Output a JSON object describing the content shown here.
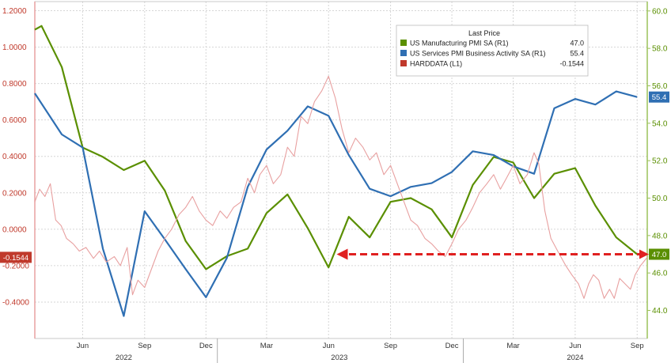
{
  "chart_data": {
    "type": "line",
    "legend": {
      "header": "Last Price",
      "placement": "top-right",
      "entries": [
        {
          "label": "US Manufacturing PMI SA  (R1)",
          "value": "47.0",
          "color": "#5a8f00"
        },
        {
          "label": "US Services PMI Business Activity SA  (R1)",
          "value": "55.4",
          "color": "#2f6fb3"
        },
        {
          "label": "HARDDATA  (L1)",
          "value": "-0.1544",
          "color": "#c0392b"
        }
      ]
    },
    "left_axis": {
      "ylim": [
        -0.6,
        1.25
      ],
      "ticks": [
        1.2,
        1.0,
        0.8,
        0.6,
        0.4,
        0.2,
        0.0,
        -0.2,
        -0.4
      ],
      "tick_labels": [
        "1.2000",
        "1.0000",
        "0.8000",
        "0.6000",
        "0.4000",
        "0.2000",
        "0.0000",
        "-0.2000",
        "-0.4000"
      ]
    },
    "right_axis": {
      "ylim": [
        42.5,
        60.5
      ],
      "ticks": [
        60,
        58,
        56,
        54,
        52,
        50,
        48,
        46,
        44
      ],
      "tick_labels": [
        "60.0",
        "58.0",
        "56.0",
        "54.0",
        "52.0",
        "50.0",
        "48.0",
        "46.0",
        "44.0"
      ]
    },
    "x_axis": {
      "xlim": [
        "2022-04-05",
        "2024-09-30"
      ],
      "month_ticks": [
        {
          "date": "2022-06-15",
          "label": "Jun"
        },
        {
          "date": "2022-09-15",
          "label": "Sep"
        },
        {
          "date": "2022-12-15",
          "label": "Dec"
        },
        {
          "date": "2023-03-15",
          "label": "Mar"
        },
        {
          "date": "2023-06-15",
          "label": "Jun"
        },
        {
          "date": "2023-09-15",
          "label": "Sep"
        },
        {
          "date": "2023-12-15",
          "label": "Dec"
        },
        {
          "date": "2024-03-15",
          "label": "Mar"
        },
        {
          "date": "2024-06-15",
          "label": "Jun"
        },
        {
          "date": "2024-09-15",
          "label": "Sep"
        }
      ],
      "year_labels": [
        {
          "date": "2022-08-15",
          "label": "2022"
        },
        {
          "date": "2023-07-01",
          "label": "2023"
        },
        {
          "date": "2024-06-15",
          "label": "2024"
        }
      ],
      "year_dividers": [
        "2023-01-01",
        "2024-01-01"
      ]
    },
    "grid": true,
    "series": [
      {
        "name": "US Manufacturing PMI SA  (R1)",
        "axis": "right",
        "color": "#5a8f00",
        "points": [
          [
            "2022-04-05",
            59.0
          ],
          [
            "2022-04-15",
            59.2
          ],
          [
            "2022-05-15",
            57.0
          ],
          [
            "2022-06-15",
            52.7
          ],
          [
            "2022-07-15",
            52.2
          ],
          [
            "2022-08-15",
            51.5
          ],
          [
            "2022-09-15",
            52.0
          ],
          [
            "2022-10-15",
            50.4
          ],
          [
            "2022-11-15",
            47.7
          ],
          [
            "2022-12-15",
            46.2
          ],
          [
            "2023-01-15",
            46.9
          ],
          [
            "2023-02-15",
            47.3
          ],
          [
            "2023-03-15",
            49.2
          ],
          [
            "2023-04-15",
            50.2
          ],
          [
            "2023-05-15",
            48.4
          ],
          [
            "2023-06-15",
            46.3
          ],
          [
            "2023-07-15",
            49.0
          ],
          [
            "2023-08-15",
            47.9
          ],
          [
            "2023-09-15",
            49.8
          ],
          [
            "2023-10-15",
            50.0
          ],
          [
            "2023-11-15",
            49.4
          ],
          [
            "2023-12-15",
            47.9
          ],
          [
            "2024-01-15",
            50.7
          ],
          [
            "2024-02-15",
            52.2
          ],
          [
            "2024-03-15",
            51.9
          ],
          [
            "2024-04-15",
            50.0
          ],
          [
            "2024-05-15",
            51.3
          ],
          [
            "2024-06-15",
            51.6
          ],
          [
            "2024-07-15",
            49.6
          ],
          [
            "2024-08-15",
            47.9
          ],
          [
            "2024-09-15",
            47.0
          ]
        ]
      },
      {
        "name": "US Services PMI Business Activity SA  (R1)",
        "axis": "right",
        "color": "#2f6fb3",
        "points": [
          [
            "2022-04-05",
            55.6
          ],
          [
            "2022-05-15",
            53.4
          ],
          [
            "2022-06-15",
            52.7
          ],
          [
            "2022-07-15",
            47.3
          ],
          [
            "2022-08-15",
            43.7
          ],
          [
            "2022-09-15",
            49.3
          ],
          [
            "2022-10-15",
            47.8
          ],
          [
            "2022-11-15",
            46.2
          ],
          [
            "2022-12-15",
            44.7
          ],
          [
            "2023-01-15",
            46.8
          ],
          [
            "2023-02-15",
            50.6
          ],
          [
            "2023-03-15",
            52.6
          ],
          [
            "2023-04-15",
            53.6
          ],
          [
            "2023-05-15",
            54.9
          ],
          [
            "2023-06-15",
            54.4
          ],
          [
            "2023-07-15",
            52.3
          ],
          [
            "2023-08-15",
            50.5
          ],
          [
            "2023-09-15",
            50.1
          ],
          [
            "2023-10-15",
            50.6
          ],
          [
            "2023-11-15",
            50.8
          ],
          [
            "2023-12-15",
            51.4
          ],
          [
            "2024-01-15",
            52.5
          ],
          [
            "2024-02-15",
            52.3
          ],
          [
            "2024-03-15",
            51.7
          ],
          [
            "2024-04-15",
            51.3
          ],
          [
            "2024-05-15",
            54.8
          ],
          [
            "2024-06-15",
            55.3
          ],
          [
            "2024-07-15",
            55.0
          ],
          [
            "2024-08-15",
            55.7
          ],
          [
            "2024-09-15",
            55.4
          ]
        ]
      },
      {
        "name": "HARDDATA  (L1)",
        "axis": "left",
        "color": "#e8a0a0",
        "points": [
          [
            "2022-04-05",
            0.15
          ],
          [
            "2022-04-12",
            0.22
          ],
          [
            "2022-04-20",
            0.18
          ],
          [
            "2022-04-28",
            0.25
          ],
          [
            "2022-05-06",
            0.05
          ],
          [
            "2022-05-14",
            0.02
          ],
          [
            "2022-05-22",
            -0.05
          ],
          [
            "2022-06-01",
            -0.08
          ],
          [
            "2022-06-10",
            -0.12
          ],
          [
            "2022-06-20",
            -0.1
          ],
          [
            "2022-07-01",
            -0.16
          ],
          [
            "2022-07-10",
            -0.12
          ],
          [
            "2022-07-20",
            -0.18
          ],
          [
            "2022-08-01",
            -0.15
          ],
          [
            "2022-08-10",
            -0.2
          ],
          [
            "2022-08-20",
            -0.1
          ],
          [
            "2022-08-28",
            -0.36
          ],
          [
            "2022-09-05",
            -0.28
          ],
          [
            "2022-09-15",
            -0.32
          ],
          [
            "2022-09-25",
            -0.22
          ],
          [
            "2022-10-05",
            -0.12
          ],
          [
            "2022-10-15",
            -0.05
          ],
          [
            "2022-10-25",
            0.0
          ],
          [
            "2022-11-05",
            0.08
          ],
          [
            "2022-11-15",
            0.12
          ],
          [
            "2022-11-25",
            0.18
          ],
          [
            "2022-12-05",
            0.1
          ],
          [
            "2022-12-15",
            0.05
          ],
          [
            "2022-12-25",
            0.02
          ],
          [
            "2023-01-05",
            0.1
          ],
          [
            "2023-01-15",
            0.06
          ],
          [
            "2023-01-25",
            0.12
          ],
          [
            "2023-02-05",
            0.15
          ],
          [
            "2023-02-15",
            0.28
          ],
          [
            "2023-02-25",
            0.2
          ],
          [
            "2023-03-05",
            0.3
          ],
          [
            "2023-03-15",
            0.35
          ],
          [
            "2023-03-25",
            0.25
          ],
          [
            "2023-04-05",
            0.3
          ],
          [
            "2023-04-15",
            0.45
          ],
          [
            "2023-04-25",
            0.4
          ],
          [
            "2023-05-05",
            0.62
          ],
          [
            "2023-05-15",
            0.58
          ],
          [
            "2023-05-25",
            0.7
          ],
          [
            "2023-06-05",
            0.76
          ],
          [
            "2023-06-15",
            0.84
          ],
          [
            "2023-06-25",
            0.72
          ],
          [
            "2023-07-05",
            0.55
          ],
          [
            "2023-07-15",
            0.42
          ],
          [
            "2023-07-25",
            0.5
          ],
          [
            "2023-08-05",
            0.45
          ],
          [
            "2023-08-15",
            0.38
          ],
          [
            "2023-08-25",
            0.42
          ],
          [
            "2023-09-05",
            0.3
          ],
          [
            "2023-09-15",
            0.35
          ],
          [
            "2023-09-25",
            0.25
          ],
          [
            "2023-10-05",
            0.15
          ],
          [
            "2023-10-15",
            0.05
          ],
          [
            "2023-10-25",
            0.02
          ],
          [
            "2023-11-05",
            -0.05
          ],
          [
            "2023-11-15",
            -0.08
          ],
          [
            "2023-11-25",
            -0.12
          ],
          [
            "2023-12-05",
            -0.15
          ],
          [
            "2023-12-15",
            -0.08
          ],
          [
            "2023-12-25",
            0.0
          ],
          [
            "2024-01-05",
            0.05
          ],
          [
            "2024-01-15",
            0.12
          ],
          [
            "2024-01-25",
            0.2
          ],
          [
            "2024-02-05",
            0.25
          ],
          [
            "2024-02-15",
            0.3
          ],
          [
            "2024-02-25",
            0.22
          ],
          [
            "2024-03-05",
            0.28
          ],
          [
            "2024-03-15",
            0.35
          ],
          [
            "2024-03-25",
            0.25
          ],
          [
            "2024-04-05",
            0.3
          ],
          [
            "2024-04-15",
            0.42
          ],
          [
            "2024-04-22",
            0.36
          ],
          [
            "2024-05-01",
            0.1
          ],
          [
            "2024-05-10",
            -0.05
          ],
          [
            "2024-05-20",
            -0.12
          ],
          [
            "2024-06-01",
            -0.2
          ],
          [
            "2024-06-10",
            -0.25
          ],
          [
            "2024-06-20",
            -0.3
          ],
          [
            "2024-06-28",
            -0.38
          ],
          [
            "2024-07-05",
            -0.3
          ],
          [
            "2024-07-12",
            -0.25
          ],
          [
            "2024-07-20",
            -0.28
          ],
          [
            "2024-07-28",
            -0.38
          ],
          [
            "2024-08-05",
            -0.33
          ],
          [
            "2024-08-12",
            -0.38
          ],
          [
            "2024-08-20",
            -0.27
          ],
          [
            "2024-08-28",
            -0.3
          ],
          [
            "2024-09-05",
            -0.33
          ],
          [
            "2024-09-12",
            -0.25
          ],
          [
            "2024-09-20",
            -0.2
          ],
          [
            "2024-09-30",
            -0.1544
          ]
        ]
      }
    ],
    "last_value_tags": [
      {
        "series": "HARDDATA  (L1)",
        "text": "-0.1544",
        "value": -0.1544,
        "axis": "left",
        "color": "#c0392b"
      },
      {
        "series": "US Services PMI Business Activity SA  (R1)",
        "text": "55.4",
        "value": 55.4,
        "axis": "right",
        "color": "#2f6fb3"
      },
      {
        "series": "US Manufacturing PMI SA  (R1)",
        "text": "47.0",
        "value": 47.0,
        "axis": "right",
        "color": "#5a8f00"
      }
    ],
    "annotations": [
      {
        "type": "dashed-arrow",
        "color": "#e02020",
        "from": [
          "2024-09-30",
          47.0
        ],
        "to": [
          "2023-06-20",
          47.0
        ],
        "axis": "right"
      }
    ]
  }
}
